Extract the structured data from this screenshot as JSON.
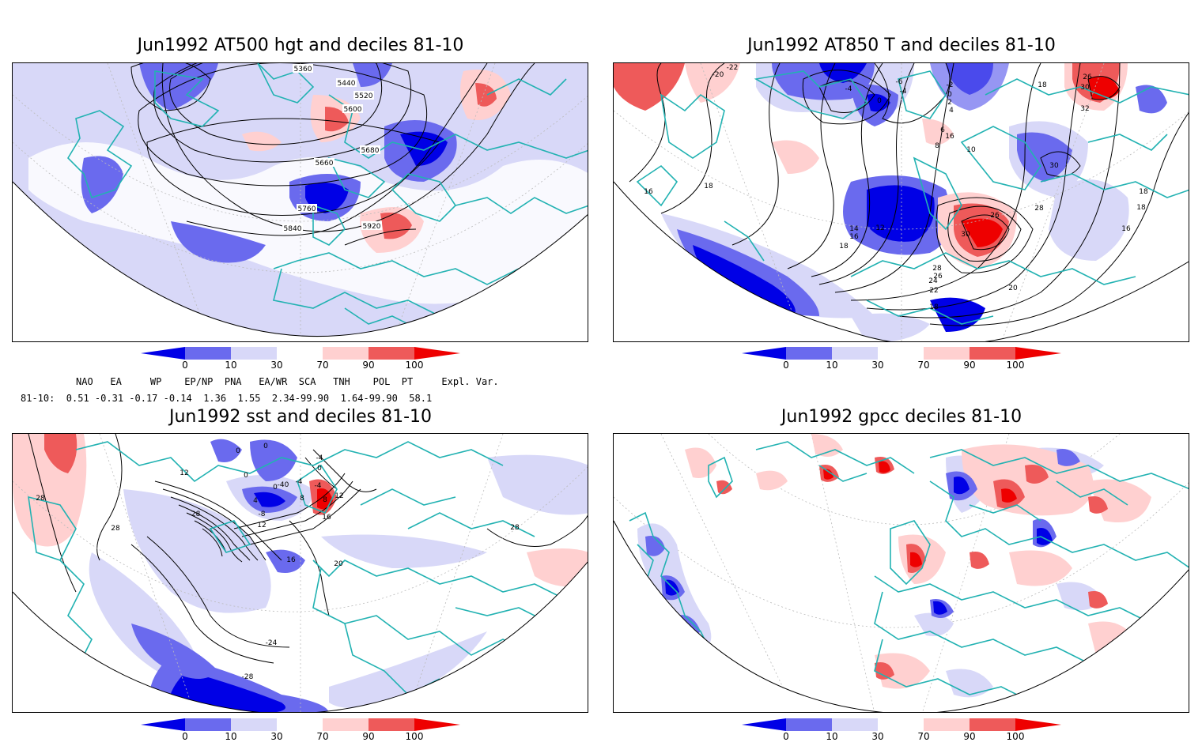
{
  "panels": [
    {
      "title": "Jun1992 AT500 hgt and deciles 81-10",
      "contour_labels": [
        "5360",
        "5440",
        "5520",
        "5600",
        "5680",
        "5660",
        "5760",
        "5840",
        "5920"
      ]
    },
    {
      "title": "Jun1992 AT850 T and deciles 81-10",
      "contour_labels": [
        "-22",
        "-20",
        "-4",
        "0",
        "-6",
        "-4",
        "-2",
        "0",
        "2",
        "4",
        "18",
        "30",
        "26",
        "32",
        "16",
        "18",
        "10",
        "8",
        "6",
        "30",
        "16",
        "18",
        "14",
        "12",
        "16",
        "18",
        "26",
        "28",
        "30",
        "28",
        "24",
        "26",
        "22",
        "20",
        "18",
        "18",
        "16"
      ]
    },
    {
      "title": "Jun1992 sst and deciles 81-10",
      "contour_labels": [
        "0",
        "0",
        "12",
        "0",
        "-4",
        "0",
        "4",
        "8",
        "0",
        "-40",
        "-4",
        "-4",
        "-8",
        "12",
        "8",
        "16",
        "12",
        "28",
        "28",
        "-28",
        "16",
        "20",
        "28",
        "-24",
        "-28"
      ]
    },
    {
      "title": "Jun1992 gpcc deciles 81-10",
      "contour_labels": []
    }
  ],
  "colorbar": {
    "ticks": [
      "0",
      "10",
      "30",
      "70",
      "90",
      "100"
    ],
    "colors": [
      "#0000e6",
      "#6a6aee",
      "#d8d8f8",
      "#ffffff",
      "#ffd0d0",
      "#ee5a5a",
      "#ee0000"
    ]
  },
  "teleconnections": {
    "header": "NAO   EA     WP    EP/NP  PNA   EA/WR  SCA   TNH    POL  PT     Expl. Var.",
    "row": "81-10:  0.51 -0.31 -0.17 -0.14  1.36  1.55  2.34-99.90  1.64-99.90  58.1"
  },
  "colors": {
    "coastline": "#22b2b2",
    "frame": "#000000",
    "contour": "#000000"
  }
}
